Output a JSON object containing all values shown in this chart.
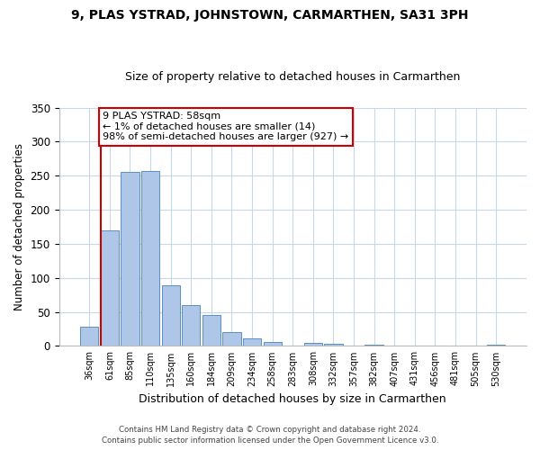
{
  "title": "9, PLAS YSTRAD, JOHNSTOWN, CARMARTHEN, SA31 3PH",
  "subtitle": "Size of property relative to detached houses in Carmarthen",
  "xlabel": "Distribution of detached houses by size in Carmarthen",
  "ylabel": "Number of detached properties",
  "bar_labels": [
    "36sqm",
    "61sqm",
    "85sqm",
    "110sqm",
    "135sqm",
    "160sqm",
    "184sqm",
    "209sqm",
    "234sqm",
    "258sqm",
    "283sqm",
    "308sqm",
    "332sqm",
    "357sqm",
    "382sqm",
    "407sqm",
    "431sqm",
    "456sqm",
    "481sqm",
    "505sqm",
    "530sqm"
  ],
  "bar_values": [
    28,
    170,
    256,
    257,
    89,
    60,
    45,
    20,
    11,
    6,
    0,
    5,
    3,
    0,
    2,
    0,
    0,
    1,
    0,
    0,
    2
  ],
  "bar_color": "#aec6e8",
  "bar_edge_color": "#5a8fc2",
  "ylim": [
    0,
    350
  ],
  "yticks": [
    0,
    50,
    100,
    150,
    200,
    250,
    300,
    350
  ],
  "marker_line_color": "#cc0000",
  "annotation_text": "9 PLAS YSTRAD: 58sqm\n← 1% of detached houses are smaller (14)\n98% of semi-detached houses are larger (927) →",
  "annotation_box_color": "#ffffff",
  "annotation_box_edge": "#cc0000",
  "footer1": "Contains HM Land Registry data © Crown copyright and database right 2024.",
  "footer2": "Contains public sector information licensed under the Open Government Licence v3.0.",
  "bg_color": "#ffffff",
  "grid_color": "#c8d8e8"
}
